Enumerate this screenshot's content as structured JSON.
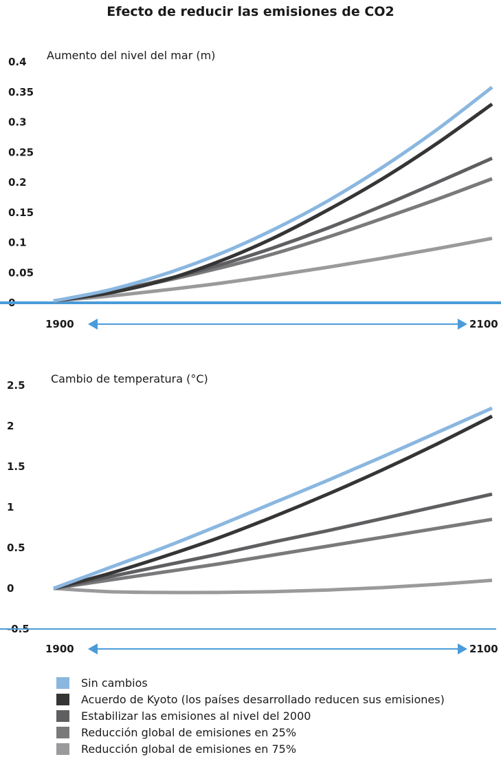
{
  "title": "Efecto de reducir las emisiones de CO2",
  "colors": {
    "axis": "#4a9bd8",
    "series": [
      "#8ab7e0",
      "#353535",
      "#5f5f62",
      "#7a7a7c",
      "#9a9a9c"
    ]
  },
  "chart_data": [
    {
      "type": "line",
      "ylabel": "Aumento del nivel del mar (m)",
      "yticks": [
        "0.4",
        "0.35",
        "0.3",
        "0.25",
        "0.2",
        "0.15",
        "0.1",
        "0.05",
        "0"
      ],
      "ylim": [
        0,
        0.4
      ],
      "xlim": [
        1900,
        2100
      ],
      "xtick_labels": [
        "1900",
        "2100"
      ],
      "x": [
        1900,
        1925,
        1950,
        1975,
        2000,
        2025,
        2050,
        2075,
        2100
      ],
      "series": [
        {
          "name": "Sin cambios",
          "values": [
            0.003,
            0.021,
            0.047,
            0.08,
            0.121,
            0.169,
            0.225,
            0.288,
            0.358
          ]
        },
        {
          "name": "Acuerdo de Kyoto (los países desarrollado reducen sus emisiones)",
          "values": [
            0.003,
            0.016,
            0.037,
            0.068,
            0.107,
            0.154,
            0.206,
            0.265,
            0.33
          ]
        },
        {
          "name": "Estabilizar las emisiones al nivel del 2000",
          "values": [
            0.003,
            0.018,
            0.038,
            0.062,
            0.091,
            0.124,
            0.161,
            0.2,
            0.24
          ]
        },
        {
          "name": "Reducción global de emisiones en 25%",
          "values": [
            0.003,
            0.018,
            0.036,
            0.057,
            0.081,
            0.109,
            0.14,
            0.172,
            0.206
          ]
        },
        {
          "name": "Reducción global de emisiones en 75%",
          "values": [
            0.003,
            0.011,
            0.021,
            0.032,
            0.045,
            0.059,
            0.074,
            0.09,
            0.107
          ]
        }
      ]
    },
    {
      "type": "line",
      "ylabel": "Cambio de temperatura (°C)",
      "yticks": [
        "2.5",
        "2",
        "1.5",
        "1",
        "0.5",
        "0",
        "-0.5"
      ],
      "ylim": [
        -0.5,
        2.5
      ],
      "xlim": [
        1900,
        2100
      ],
      "xtick_labels": [
        "1900",
        "2100"
      ],
      "x": [
        1900,
        1925,
        1950,
        1975,
        2000,
        2025,
        2050,
        2075,
        2100
      ],
      "series": [
        {
          "name": "Sin cambios",
          "values": [
            0.0,
            0.25,
            0.5,
            0.77,
            1.05,
            1.33,
            1.62,
            1.92,
            2.22
          ]
        },
        {
          "name": "Acuerdo de Kyoto (los países desarrollado reducen sus emisiones)",
          "values": [
            0.0,
            0.18,
            0.39,
            0.62,
            0.88,
            1.16,
            1.46,
            1.78,
            2.12
          ]
        },
        {
          "name": "Estabilizar las emisiones al nivel del 2000",
          "values": [
            0.0,
            0.14,
            0.28,
            0.42,
            0.57,
            0.71,
            0.86,
            1.01,
            1.16
          ]
        },
        {
          "name": "Reducción global de emisiones en 25%",
          "values": [
            0.0,
            0.1,
            0.2,
            0.3,
            0.41,
            0.52,
            0.63,
            0.74,
            0.85
          ]
        },
        {
          "name": "Reducción global de emisiones en 75%",
          "values": [
            0.0,
            -0.04,
            -0.05,
            -0.05,
            -0.04,
            -0.02,
            0.01,
            0.05,
            0.1
          ]
        }
      ]
    }
  ],
  "legend": [
    {
      "label": "Sin cambios",
      "color": "#8ab7e0"
    },
    {
      "label": "Acuerdo de Kyoto (los países desarrollado reducen sus emisiones)",
      "color": "#353535"
    },
    {
      "label": "Estabilizar las emisiones al nivel del 2000",
      "color": "#5f5f62"
    },
    {
      "label": "Reducción global de emisiones en 25%",
      "color": "#7a7a7c"
    },
    {
      "label": "Reducción global de emisiones en 75%",
      "color": "#9a9a9c"
    }
  ]
}
